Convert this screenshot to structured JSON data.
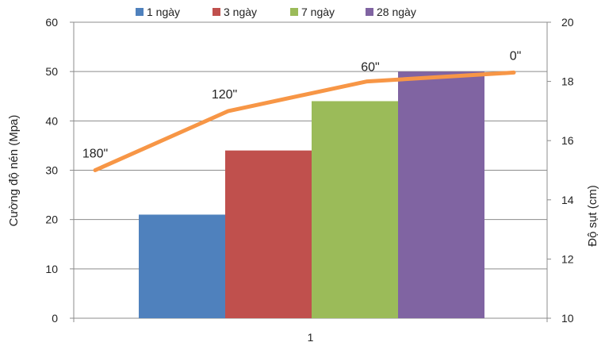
{
  "chart_data": {
    "type": "bar",
    "categories": [
      "1"
    ],
    "series": [
      {
        "name": "1 ngày",
        "values": [
          21
        ],
        "color": "#4f81bd"
      },
      {
        "name": "3 ngày",
        "values": [
          34
        ],
        "color": "#c0504d"
      },
      {
        "name": "7 ngày",
        "values": [
          44
        ],
        "color": "#9bbb59"
      },
      {
        "name": "28 ngày",
        "values": [
          50
        ],
        "color": "#8064a2"
      }
    ],
    "ylabel": "Cường độ nén (Mpa)",
    "y2label": "Độ sụt (cm)",
    "ylim": [
      0,
      60
    ],
    "y2lim": [
      10,
      20
    ],
    "yticks": [
      0,
      10,
      20,
      30,
      40,
      50,
      60
    ],
    "y2ticks": [
      10,
      12,
      14,
      16,
      18,
      20
    ],
    "grid": true,
    "legend_position": "top",
    "line_series": {
      "color": "#f79646",
      "points": [
        {
          "label": "180\"",
          "value": 15.0
        },
        {
          "label": "120\"",
          "value": 17.0
        },
        {
          "label": "60\"",
          "value": 18.0
        },
        {
          "label": "0\"",
          "value": 18.3
        }
      ]
    }
  }
}
